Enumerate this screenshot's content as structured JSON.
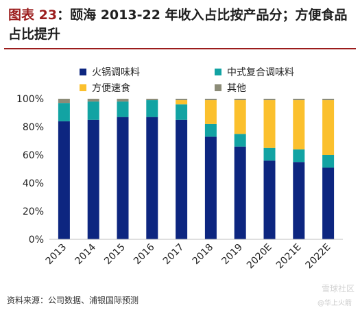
{
  "header": {
    "label": "图表",
    "number": "23",
    "text": "：颐海 2013-22 年收入占比按产品分；方便食品占比提升"
  },
  "chart_data": {
    "type": "bar",
    "stacked": true,
    "categories": [
      "2013",
      "2014",
      "2015",
      "2016",
      "2017",
      "2018",
      "2019",
      "2020E",
      "2021E",
      "2022E"
    ],
    "series": [
      {
        "name": "火锅调味料",
        "color": "#0d2680",
        "values": [
          84,
          85,
          87,
          87,
          85,
          73,
          66,
          56,
          55,
          51
        ]
      },
      {
        "name": "中式复合调味料",
        "color": "#12a3a3",
        "values": [
          13,
          13,
          11,
          12,
          11,
          9,
          9,
          9,
          9,
          9
        ]
      },
      {
        "name": "方便速食",
        "color": "#fbc02d",
        "values": [
          0,
          0,
          0,
          0,
          3,
          17,
          24,
          34,
          35,
          39
        ]
      },
      {
        "name": "其他",
        "color": "#8c8c78",
        "values": [
          3,
          2,
          2,
          1,
          1,
          1,
          1,
          1,
          1,
          1
        ]
      }
    ],
    "ylim": [
      0,
      100
    ],
    "yticks": [
      "0%",
      "20%",
      "40%",
      "60%",
      "80%",
      "100%"
    ],
    "legend_position": "top",
    "grid": false
  },
  "footer": {
    "source": "资料来源：公司数据、浦银国际预测",
    "watermark_top": "雪球社区",
    "watermark_bottom": "@华上火箭"
  }
}
